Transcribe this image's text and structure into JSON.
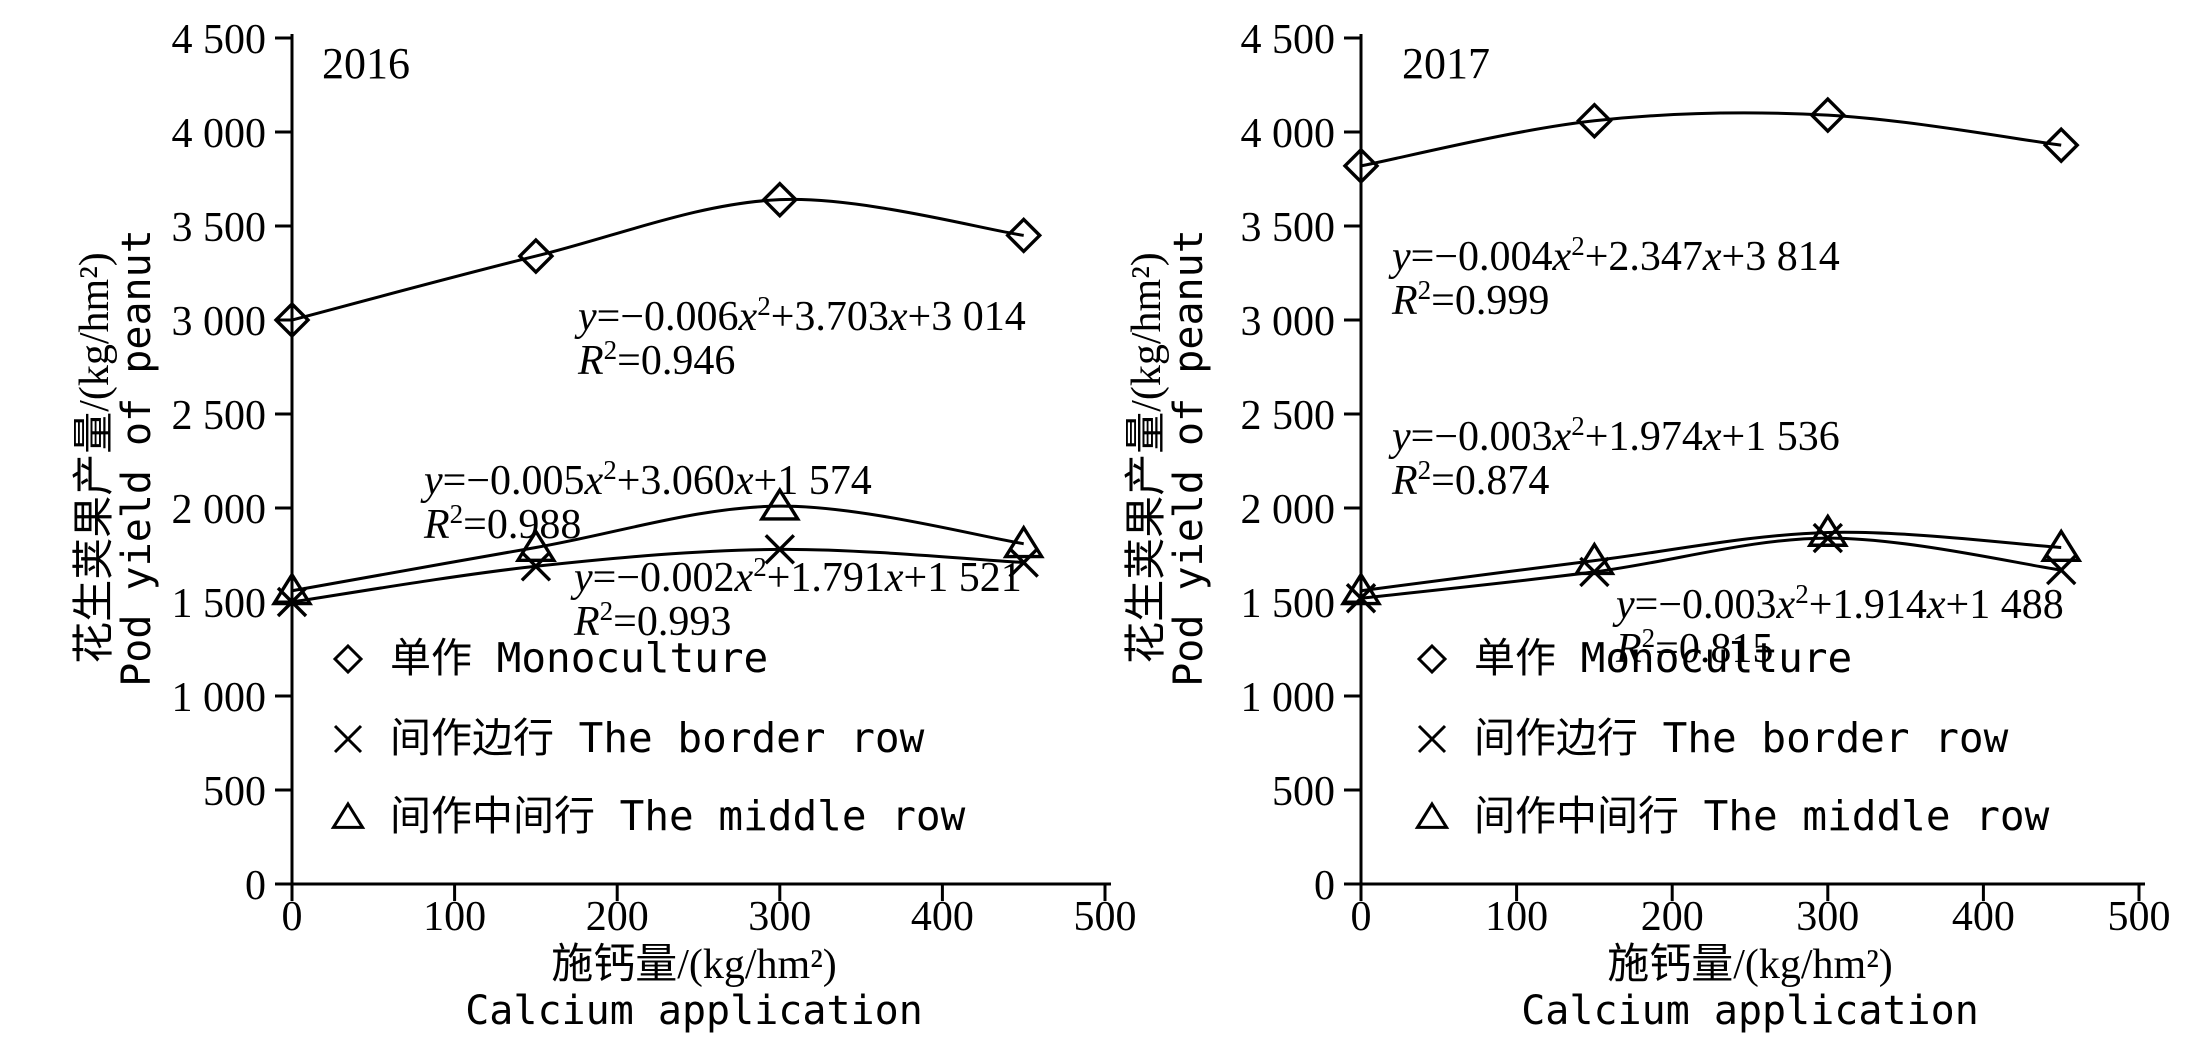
{
  "figure": {
    "background": "#ffffff",
    "foreground": "#000000"
  },
  "axes": {
    "x": {
      "title_zh": "施钙量/(kg/hm²)",
      "title_en": "Calcium application",
      "tick_labels": [
        "0",
        "100",
        "200",
        "300",
        "400",
        "500"
      ],
      "ticks": [
        0,
        100,
        200,
        300,
        400,
        500
      ],
      "range": [
        0,
        500
      ]
    },
    "y": {
      "title_zh": "花生荚果产量/(kg/hm²)",
      "title_en": "Pod yield of peanut",
      "tick_labels": [
        "0",
        "500",
        "1 000",
        "1 500",
        "2 000",
        "2 500",
        "3 000",
        "3 500",
        "4 000",
        "4 500"
      ],
      "ticks": [
        0,
        500,
        1000,
        1500,
        2000,
        2500,
        3000,
        3500,
        4000,
        4500
      ],
      "range": [
        0,
        4500
      ]
    }
  },
  "legend": [
    {
      "marker": "diamond",
      "label": "单作 Monoculture"
    },
    {
      "marker": "x",
      "label": "间作边行 The border row"
    },
    {
      "marker": "triangle",
      "label": "间作中间行 The middle row"
    }
  ],
  "chart_data": [
    {
      "type": "scatter",
      "title": "2016",
      "xlabel": "施钙量/(kg/hm²) Calcium application",
      "ylabel": "花生荚果产量/(kg/hm²) Pod yield of peanut",
      "xlim": [
        0,
        500
      ],
      "ylim": [
        0,
        4500
      ],
      "x": [
        0,
        150,
        300,
        450
      ],
      "grid": false,
      "series": [
        {
          "name": "单作 Monoculture",
          "marker": "diamond",
          "values": [
            3000,
            3340,
            3640,
            3450
          ],
          "equation": "y=-0.006x^2+3.703x+3 014",
          "r2": "R^2=0.946"
        },
        {
          "name": "间作中间行 The middle row",
          "marker": "triangle",
          "values": [
            1560,
            1790,
            2010,
            1810
          ],
          "equation": "y=-0.005x^2+3.060x+1 574",
          "r2": "R^2=0.988"
        },
        {
          "name": "间作边行 The border row",
          "marker": "x",
          "values": [
            1500,
            1690,
            1780,
            1710
          ],
          "equation": "y=-0.002x^2+1.791x+1 521",
          "r2": "R^2=0.993"
        }
      ]
    },
    {
      "type": "scatter",
      "title": "2017",
      "xlabel": "施钙量/(kg/hm²) Calcium application",
      "ylabel": "花生荚果产量/(kg/hm²) Pod yield of peanut",
      "xlim": [
        0,
        500
      ],
      "ylim": [
        0,
        4500
      ],
      "x": [
        0,
        150,
        300,
        450
      ],
      "grid": false,
      "series": [
        {
          "name": "单作 Monoculture",
          "marker": "diamond",
          "values": [
            3820,
            4060,
            4090,
            3930
          ],
          "equation": "y=-0.004x^2+2.347x+3 814",
          "r2": "R^2=0.999"
        },
        {
          "name": "间作中间行 The middle row",
          "marker": "triangle",
          "values": [
            1560,
            1720,
            1870,
            1790
          ],
          "equation": "y=-0.003x^2+1.974x+1 536",
          "r2": "R^2=0.874"
        },
        {
          "name": "间作边行 The border row",
          "marker": "x",
          "values": [
            1520,
            1660,
            1840,
            1670
          ],
          "equation": "y=-0.003x^2+1.914x+1 488",
          "r2": "R^2=0.815"
        }
      ]
    }
  ]
}
